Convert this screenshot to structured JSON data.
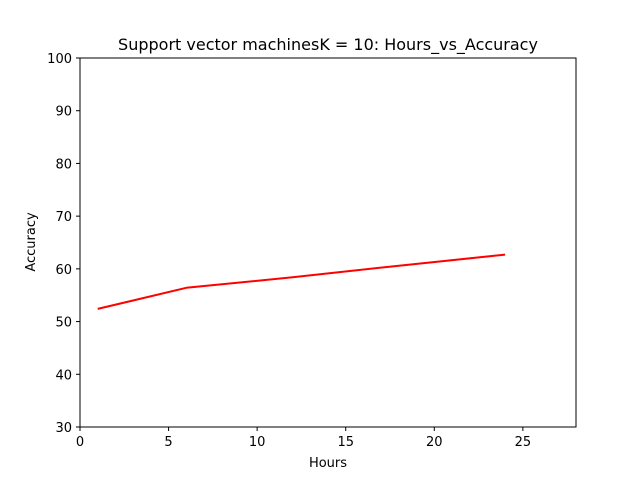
{
  "chart_data": {
    "type": "line",
    "title": "Support vector machinesK = 10: Hours_vs_Accuracy",
    "xlabel": "Hours",
    "ylabel": "Accuracy",
    "xlim": [
      0,
      28
    ],
    "ylim": [
      30,
      100
    ],
    "xticks": [
      0,
      5,
      10,
      15,
      20,
      25
    ],
    "yticks": [
      30,
      40,
      50,
      60,
      70,
      80,
      90,
      100
    ],
    "grid": false,
    "series": [
      {
        "color": "#ff0000",
        "x": [
          1,
          6,
          12,
          18,
          24
        ],
        "y": [
          52.4,
          56.4,
          58.4,
          60.6,
          62.7
        ]
      }
    ]
  }
}
